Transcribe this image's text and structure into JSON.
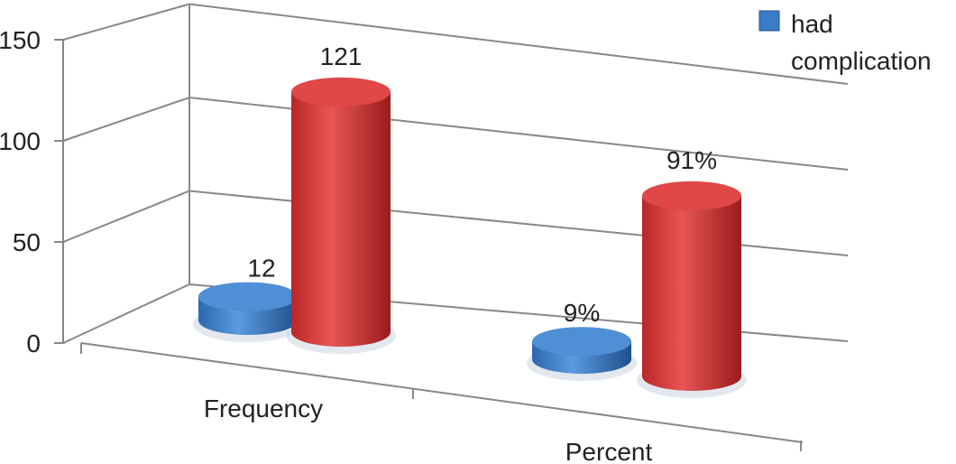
{
  "chart_data": {
    "type": "bar",
    "style": "3d-cylinder",
    "categories": [
      "Frequency",
      "Percent"
    ],
    "series": [
      {
        "name": "had complication",
        "values": [
          12,
          9
        ],
        "labels": [
          "12",
          "9%"
        ],
        "color": "#3a7cc7"
      },
      {
        "values": [
          121,
          91
        ],
        "labels": [
          "121",
          "91%"
        ],
        "color": "#d63a3a"
      }
    ],
    "yticks": [
      "0",
      "50",
      "100",
      "150"
    ],
    "ylim": [
      0,
      150
    ],
    "grid": true,
    "legend": "top-right"
  }
}
